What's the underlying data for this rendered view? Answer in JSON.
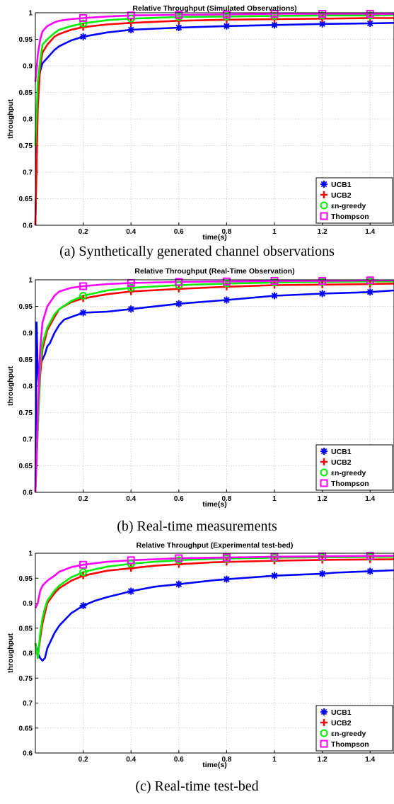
{
  "chart_data": [
    {
      "type": "line",
      "title": "Relative Throughput (Simulated Observations)",
      "xlabel": "time(s)",
      "ylabel": "throughput",
      "xlim": [
        0,
        1.5
      ],
      "ylim": [
        0.6,
        1.0
      ],
      "xticks": [
        "0.2",
        "0.4",
        "0.6",
        "0.8",
        "1",
        "1.2",
        "1.4"
      ],
      "yticks": [
        "0.6",
        "0.65",
        "0.7",
        "0.75",
        "0.8",
        "0.85",
        "0.9",
        "0.95",
        "1"
      ],
      "grid": true,
      "legend_position": "bottom-right",
      "caption": "(a) Synthetically generated channel observations",
      "series": [
        {
          "name": "UCB1",
          "color": "#0000ff",
          "marker": "star",
          "x": [
            0.0,
            0.01,
            0.02,
            0.03,
            0.05,
            0.08,
            0.1,
            0.15,
            0.2,
            0.3,
            0.4,
            0.6,
            0.8,
            1.0,
            1.2,
            1.4,
            1.5
          ],
          "y": [
            0.6,
            0.86,
            0.89,
            0.905,
            0.915,
            0.93,
            0.937,
            0.948,
            0.955,
            0.963,
            0.968,
            0.972,
            0.975,
            0.977,
            0.979,
            0.98,
            0.981
          ]
        },
        {
          "name": "UCB2",
          "color": "#ff0000",
          "marker": "plus",
          "x": [
            0.0,
            0.01,
            0.02,
            0.03,
            0.05,
            0.08,
            0.1,
            0.15,
            0.2,
            0.3,
            0.4,
            0.6,
            0.8,
            1.0,
            1.2,
            1.4,
            1.5
          ],
          "y": [
            0.6,
            0.82,
            0.9,
            0.925,
            0.94,
            0.955,
            0.96,
            0.968,
            0.973,
            0.978,
            0.981,
            0.985,
            0.987,
            0.988,
            0.989,
            0.99,
            0.99
          ]
        },
        {
          "name": "εn-greedy",
          "color": "#00ee00",
          "marker": "circle",
          "x": [
            0.0,
            0.01,
            0.02,
            0.03,
            0.05,
            0.08,
            0.1,
            0.15,
            0.2,
            0.3,
            0.4,
            0.6,
            0.8,
            1.0,
            1.2,
            1.4,
            1.5
          ],
          "y": [
            0.75,
            0.87,
            0.91,
            0.94,
            0.95,
            0.962,
            0.968,
            0.975,
            0.98,
            0.986,
            0.989,
            0.992,
            0.993,
            0.994,
            0.995,
            0.995,
            0.996
          ]
        },
        {
          "name": "Thompson",
          "color": "#ff00ff",
          "marker": "square",
          "x": [
            0.0,
            0.01,
            0.02,
            0.03,
            0.05,
            0.08,
            0.1,
            0.15,
            0.2,
            0.3,
            0.4,
            0.6,
            0.8,
            1.0,
            1.2,
            1.4,
            1.5
          ],
          "y": [
            0.87,
            0.92,
            0.95,
            0.965,
            0.975,
            0.982,
            0.985,
            0.988,
            0.99,
            0.993,
            0.995,
            0.996,
            0.997,
            0.998,
            0.998,
            0.998,
            0.998
          ]
        }
      ]
    },
    {
      "type": "line",
      "title": "Relative Throughput (Real-Time Observation)",
      "xlabel": "time(s)",
      "ylabel": "throughput",
      "xlim": [
        0,
        1.5
      ],
      "ylim": [
        0.6,
        1.0
      ],
      "xticks": [
        "0.2",
        "0.4",
        "0.6",
        "0.8",
        "1",
        "1.2",
        "1.4"
      ],
      "yticks": [
        "0.6",
        "0.65",
        "0.7",
        "0.75",
        "0.8",
        "0.85",
        "0.9",
        "0.95",
        "1"
      ],
      "grid": true,
      "legend_position": "bottom-right",
      "caption": "(b) Real-time measurements",
      "series": [
        {
          "name": "UCB1",
          "color": "#0000ff",
          "marker": "star",
          "x": [
            0.0,
            0.005,
            0.01,
            0.015,
            0.02,
            0.03,
            0.04,
            0.05,
            0.06,
            0.08,
            0.1,
            0.12,
            0.15,
            0.2,
            0.3,
            0.4,
            0.6,
            0.8,
            1.0,
            1.2,
            1.4,
            1.5
          ],
          "y": [
            0.6,
            0.92,
            0.83,
            0.8,
            0.84,
            0.85,
            0.86,
            0.875,
            0.88,
            0.9,
            0.915,
            0.925,
            0.93,
            0.938,
            0.94,
            0.945,
            0.955,
            0.962,
            0.97,
            0.974,
            0.977,
            0.98
          ]
        },
        {
          "name": "UCB2",
          "color": "#ff0000",
          "marker": "plus",
          "x": [
            0.0,
            0.01,
            0.015,
            0.02,
            0.03,
            0.05,
            0.08,
            0.1,
            0.15,
            0.2,
            0.3,
            0.4,
            0.6,
            0.8,
            1.0,
            1.2,
            1.4,
            1.5
          ],
          "y": [
            0.6,
            0.72,
            0.77,
            0.82,
            0.87,
            0.905,
            0.93,
            0.945,
            0.958,
            0.965,
            0.973,
            0.978,
            0.983,
            0.987,
            0.99,
            0.991,
            0.992,
            0.993
          ]
        },
        {
          "name": "εn-greedy",
          "color": "#00ee00",
          "marker": "circle",
          "x": [
            0.0,
            0.01,
            0.015,
            0.02,
            0.03,
            0.05,
            0.08,
            0.1,
            0.15,
            0.2,
            0.3,
            0.4,
            0.6,
            0.8,
            1.0,
            1.2,
            1.4,
            1.5
          ],
          "y": [
            0.6,
            0.715,
            0.77,
            0.84,
            0.88,
            0.91,
            0.935,
            0.945,
            0.96,
            0.97,
            0.98,
            0.985,
            0.99,
            0.993,
            0.995,
            0.996,
            0.997,
            0.997
          ]
        },
        {
          "name": "Thompson",
          "color": "#ff00ff",
          "marker": "square",
          "x": [
            0.0,
            0.005,
            0.01,
            0.02,
            0.03,
            0.05,
            0.08,
            0.1,
            0.15,
            0.2,
            0.3,
            0.4,
            0.6,
            0.8,
            1.0,
            1.2,
            1.4,
            1.5
          ],
          "y": [
            0.6,
            0.66,
            0.75,
            0.87,
            0.92,
            0.95,
            0.97,
            0.978,
            0.985,
            0.988,
            0.992,
            0.994,
            0.996,
            0.997,
            0.998,
            0.998,
            0.999,
            0.999
          ]
        }
      ]
    },
    {
      "type": "line",
      "title": "Relative Throughput (Experimental test-bed)",
      "xlabel": "time(s)",
      "ylabel": "throughput",
      "xlim": [
        0,
        1.5
      ],
      "ylim": [
        0.6,
        1.0
      ],
      "xticks": [
        "0.2",
        "0.4",
        "0.6",
        "0.8",
        "1",
        "1.2",
        "1.4"
      ],
      "yticks": [
        "0.6",
        "0.65",
        "0.7",
        "0.75",
        "0.8",
        "0.85",
        "0.9",
        "0.95",
        "1"
      ],
      "grid": true,
      "legend_position": "bottom-right",
      "caption": "(c) Real-time test-bed",
      "series": [
        {
          "name": "UCB1",
          "color": "#0000ff",
          "marker": "star",
          "x": [
            0.0,
            0.01,
            0.02,
            0.03,
            0.04,
            0.05,
            0.06,
            0.08,
            0.1,
            0.15,
            0.2,
            0.25,
            0.3,
            0.4,
            0.5,
            0.6,
            0.75,
            0.8,
            1.0,
            1.2,
            1.25,
            1.4,
            1.5
          ],
          "y": [
            0.82,
            0.8,
            0.79,
            0.785,
            0.79,
            0.81,
            0.82,
            0.84,
            0.855,
            0.88,
            0.895,
            0.905,
            0.912,
            0.924,
            0.933,
            0.938,
            0.946,
            0.948,
            0.955,
            0.959,
            0.961,
            0.964,
            0.966
          ]
        },
        {
          "name": "UCB2",
          "color": "#ff0000",
          "marker": "plus",
          "x": [
            0.0,
            0.01,
            0.02,
            0.03,
            0.04,
            0.05,
            0.08,
            0.1,
            0.15,
            0.2,
            0.25,
            0.3,
            0.4,
            0.5,
            0.6,
            0.75,
            1.0,
            1.25,
            1.5
          ],
          "y": [
            0.82,
            0.79,
            0.83,
            0.86,
            0.88,
            0.9,
            0.92,
            0.93,
            0.945,
            0.955,
            0.96,
            0.965,
            0.97,
            0.975,
            0.978,
            0.982,
            0.985,
            0.987,
            0.988
          ]
        },
        {
          "name": "εn-greedy",
          "color": "#00ee00",
          "marker": "circle",
          "x": [
            0.0,
            0.01,
            0.02,
            0.03,
            0.04,
            0.05,
            0.08,
            0.1,
            0.15,
            0.2,
            0.25,
            0.3,
            0.4,
            0.5,
            0.6,
            0.75,
            1.0,
            1.25,
            1.5
          ],
          "y": [
            0.82,
            0.79,
            0.84,
            0.87,
            0.89,
            0.905,
            0.925,
            0.935,
            0.952,
            0.962,
            0.968,
            0.973,
            0.979,
            0.983,
            0.986,
            0.989,
            0.991,
            0.992,
            0.993
          ]
        },
        {
          "name": "Thompson",
          "color": "#ff00ff",
          "marker": "square",
          "x": [
            0.0,
            0.01,
            0.02,
            0.03,
            0.05,
            0.08,
            0.1,
            0.15,
            0.2,
            0.25,
            0.3,
            0.4,
            0.5,
            0.6,
            0.75,
            1.0,
            1.25,
            1.5
          ],
          "y": [
            0.89,
            0.9,
            0.925,
            0.935,
            0.945,
            0.955,
            0.963,
            0.972,
            0.977,
            0.98,
            0.983,
            0.986,
            0.988,
            0.99,
            0.991,
            0.993,
            0.994,
            0.995
          ]
        }
      ]
    }
  ]
}
